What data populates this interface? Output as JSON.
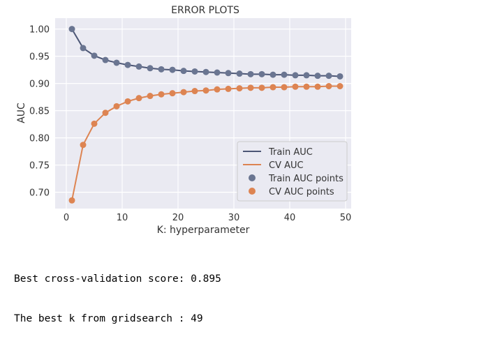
{
  "chart_data": {
    "type": "line",
    "title": "ERROR PLOTS",
    "xlabel": "K: hyperparameter",
    "ylabel": "AUC",
    "xlim": [
      -2,
      51
    ],
    "ylim": [
      0.67,
      1.02
    ],
    "xticks": [
      0,
      10,
      20,
      30,
      40,
      50
    ],
    "yticks": [
      0.7,
      0.75,
      0.8,
      0.85,
      0.9,
      0.95,
      1.0
    ],
    "grid": true,
    "legend_position": "lower-right",
    "x": [
      1,
      3,
      5,
      7,
      9,
      11,
      13,
      15,
      17,
      19,
      21,
      23,
      25,
      27,
      29,
      31,
      33,
      35,
      37,
      39,
      41,
      43,
      45,
      47,
      49
    ],
    "series": [
      {
        "name": "Train AUC",
        "points_name": "Train AUC points",
        "color": "#6a7591",
        "line_color": "#4c5675",
        "values": [
          1.0,
          0.965,
          0.951,
          0.943,
          0.938,
          0.934,
          0.931,
          0.928,
          0.926,
          0.925,
          0.923,
          0.922,
          0.921,
          0.92,
          0.919,
          0.918,
          0.917,
          0.917,
          0.916,
          0.916,
          0.915,
          0.915,
          0.914,
          0.914,
          0.913
        ]
      },
      {
        "name": "CV AUC",
        "points_name": "CV AUC points",
        "color": "#dd8452",
        "line_color": "#dd8452",
        "values": [
          0.685,
          0.787,
          0.826,
          0.846,
          0.858,
          0.867,
          0.873,
          0.877,
          0.88,
          0.882,
          0.884,
          0.886,
          0.887,
          0.889,
          0.89,
          0.891,
          0.892,
          0.892,
          0.893,
          0.893,
          0.894,
          0.894,
          0.894,
          0.895,
          0.895
        ]
      }
    ]
  },
  "console": {
    "line1": "Best cross-validation score: 0.895",
    "line2": "The best k from gridsearch : 49"
  },
  "colors": {
    "plot_background": "#eaeaf2",
    "grid": "#ffffff"
  }
}
